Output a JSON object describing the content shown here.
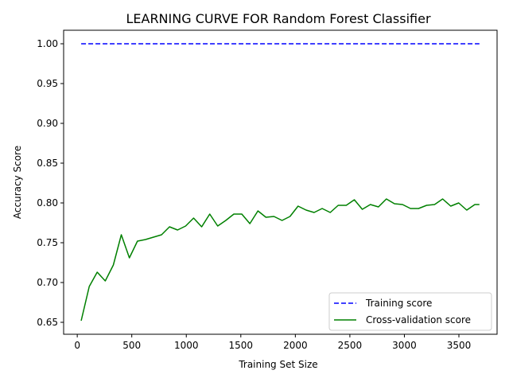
{
  "chart_data": {
    "type": "line",
    "title": "LEARNING CURVE FOR Random Forest Classifier",
    "xlabel": "Training Set Size",
    "ylabel": "Accuracy Score",
    "xlim": [
      -125,
      3850
    ],
    "ylim": [
      0.635,
      1.017
    ],
    "xticks": [
      0,
      500,
      1000,
      1500,
      2000,
      2500,
      3000,
      3500
    ],
    "yticks": [
      0.65,
      0.7,
      0.75,
      0.8,
      0.85,
      0.9,
      0.95,
      1.0
    ],
    "xtick_labels": [
      "0",
      "500",
      "1000",
      "1500",
      "2000",
      "2500",
      "3000",
      "3500"
    ],
    "ytick_labels": [
      "0.65",
      "0.70",
      "0.75",
      "0.80",
      "0.85",
      "0.90",
      "0.95",
      "1.00"
    ],
    "grid": false,
    "legend_position": "lower-right",
    "x": [
      36,
      110,
      183,
      257,
      331,
      404,
      478,
      552,
      625,
      699,
      773,
      846,
      920,
      994,
      1067,
      1141,
      1215,
      1288,
      1362,
      1436,
      1509,
      1583,
      1657,
      1730,
      1804,
      1878,
      1951,
      2025,
      2099,
      2172,
      2246,
      2320,
      2393,
      2467,
      2541,
      2614,
      2688,
      2762,
      2835,
      2909,
      2983,
      3056,
      3130,
      3204,
      3277,
      3351,
      3425,
      3498,
      3572,
      3646,
      3688
    ],
    "series": [
      {
        "name": "Training score",
        "color": "#0000ff",
        "dash": "dashed",
        "values": [
          1.0,
          1.0,
          1.0,
          1.0,
          1.0,
          1.0,
          1.0,
          1.0,
          1.0,
          1.0,
          1.0,
          1.0,
          1.0,
          1.0,
          1.0,
          1.0,
          1.0,
          1.0,
          1.0,
          1.0,
          1.0,
          1.0,
          1.0,
          1.0,
          1.0,
          1.0,
          1.0,
          1.0,
          1.0,
          1.0,
          1.0,
          1.0,
          1.0,
          1.0,
          1.0,
          1.0,
          1.0,
          1.0,
          1.0,
          1.0,
          1.0,
          1.0,
          1.0,
          1.0,
          1.0,
          1.0,
          1.0,
          1.0,
          1.0,
          1.0,
          1.0
        ]
      },
      {
        "name": "Cross-validation score",
        "color": "#008000",
        "dash": "solid",
        "values": [
          0.652,
          0.695,
          0.713,
          0.702,
          0.722,
          0.76,
          0.731,
          0.752,
          0.754,
          0.757,
          0.76,
          0.77,
          0.766,
          0.771,
          0.781,
          0.77,
          0.786,
          0.771,
          0.778,
          0.786,
          0.786,
          0.774,
          0.79,
          0.782,
          0.783,
          0.778,
          0.783,
          0.796,
          0.791,
          0.788,
          0.793,
          0.788,
          0.797,
          0.797,
          0.804,
          0.792,
          0.798,
          0.795,
          0.805,
          0.799,
          0.798,
          0.793,
          0.793,
          0.797,
          0.798,
          0.805,
          0.796,
          0.8,
          0.791,
          0.798,
          0.798
        ]
      }
    ]
  }
}
